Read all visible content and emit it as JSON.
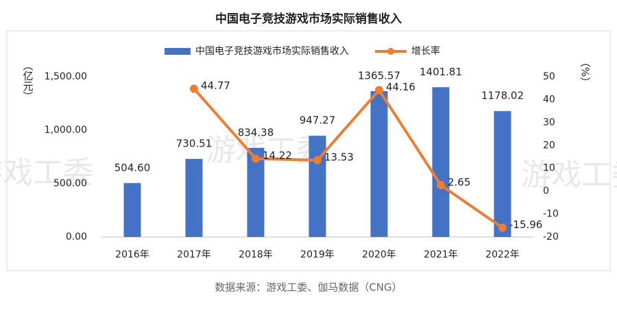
{
  "chart_data": {
    "type": "combo",
    "title": "中国电子竞技游戏市场实际销售收入",
    "categories": [
      "2016年",
      "2017年",
      "2018年",
      "2019年",
      "2020年",
      "2021年",
      "2022年"
    ],
    "series": [
      {
        "name": "中国电子竞技游戏市场实际销售收入",
        "type": "bar",
        "color": "#4472c4",
        "values": [
          504.6,
          730.51,
          834.38,
          947.27,
          1365.57,
          1401.81,
          1178.02
        ],
        "value_labels": [
          "504.60",
          "730.51",
          "834.38",
          "947.27",
          "1365.57",
          "1401.81",
          "1178.02"
        ]
      },
      {
        "name": "增长率",
        "type": "line",
        "axis": "y2",
        "color": "#ed7d31",
        "values": [
          null,
          44.77,
          14.22,
          13.53,
          44.16,
          2.65,
          -15.96
        ]
      }
    ],
    "ylabel": "（亿元）",
    "y2label": "（%）",
    "ylim": [
      0,
      1500
    ],
    "yticks": [
      {
        "value": 0,
        "label": "0.00"
      },
      {
        "value": 500,
        "label": "500.00"
      },
      {
        "value": 1000,
        "label": "1,000.00"
      },
      {
        "value": 1500,
        "label": "1,500.00"
      }
    ],
    "y2lim": [
      -20,
      50
    ],
    "y2ticks": [
      -20,
      -10,
      0,
      10,
      20,
      30,
      40,
      50
    ],
    "legend": "top",
    "watermark": "游戏工委",
    "source": "数据来源：游戏工委、伽马数据（CNG）"
  }
}
